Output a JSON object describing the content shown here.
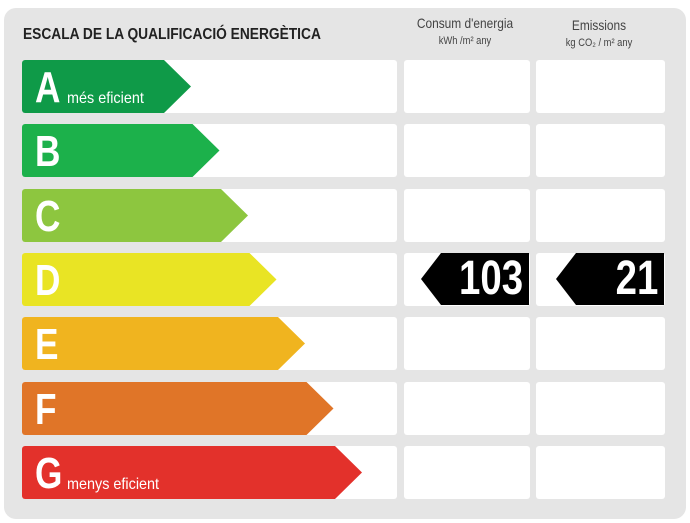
{
  "title": "ESCALA DE LA QUALIFICACIÓ ENERGÈTICA",
  "columns": {
    "consum": {
      "label": "Consum d'energia",
      "unit": "kWh /m² any"
    },
    "emissions": {
      "label": "Emissions",
      "unit": "kg CO₂ / m² any"
    }
  },
  "ratings": [
    {
      "letter": "A",
      "sub": "més eficient",
      "color": "#0f9a48"
    },
    {
      "letter": "B",
      "sub": "",
      "color": "#1cb14b"
    },
    {
      "letter": "C",
      "sub": "",
      "color": "#8dc63f"
    },
    {
      "letter": "D",
      "sub": "",
      "color": "#e9e424"
    },
    {
      "letter": "E",
      "sub": "",
      "color": "#f0b41f"
    },
    {
      "letter": "F",
      "sub": "",
      "color": "#e07528"
    },
    {
      "letter": "G",
      "sub": "menys eficient",
      "color": "#e3312b"
    }
  ],
  "current_rating": "D",
  "consum_value": "103",
  "emissions_value": "21"
}
